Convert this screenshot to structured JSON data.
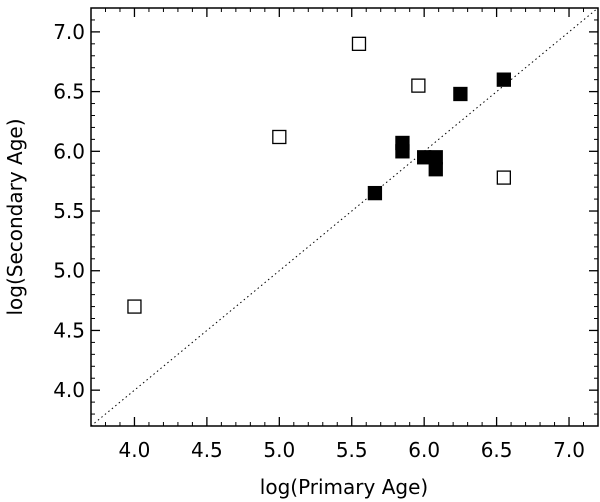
{
  "chart_data": {
    "type": "scatter",
    "xlabel": "log(Primary Age)",
    "ylabel": "log(Secondary Age)",
    "xlim": [
      3.7,
      7.2
    ],
    "ylim": [
      3.7,
      7.2
    ],
    "x_ticks": [
      "4.0",
      "4.5",
      "5.0",
      "5.5",
      "6.0",
      "6.5",
      "7.0"
    ],
    "y_ticks": [
      "4.0",
      "4.5",
      "5.0",
      "5.5",
      "6.0",
      "6.5",
      "7.0"
    ],
    "grid": false,
    "reference_line": {
      "style": "dotted",
      "from": [
        3.7,
        3.7
      ],
      "to": [
        7.2,
        7.2
      ]
    },
    "series": [
      {
        "marker": "filled-square",
        "points": [
          [
            5.85,
            6.07
          ],
          [
            5.85,
            6.0
          ],
          [
            5.66,
            5.65
          ],
          [
            6.0,
            5.95
          ],
          [
            6.08,
            5.95
          ],
          [
            6.08,
            5.85
          ],
          [
            6.25,
            6.48
          ],
          [
            6.55,
            6.6
          ]
        ]
      },
      {
        "marker": "open-square",
        "points": [
          [
            4.0,
            4.7
          ],
          [
            5.0,
            6.12
          ],
          [
            5.55,
            6.9
          ],
          [
            5.96,
            6.55
          ],
          [
            6.55,
            5.78
          ]
        ]
      }
    ]
  }
}
